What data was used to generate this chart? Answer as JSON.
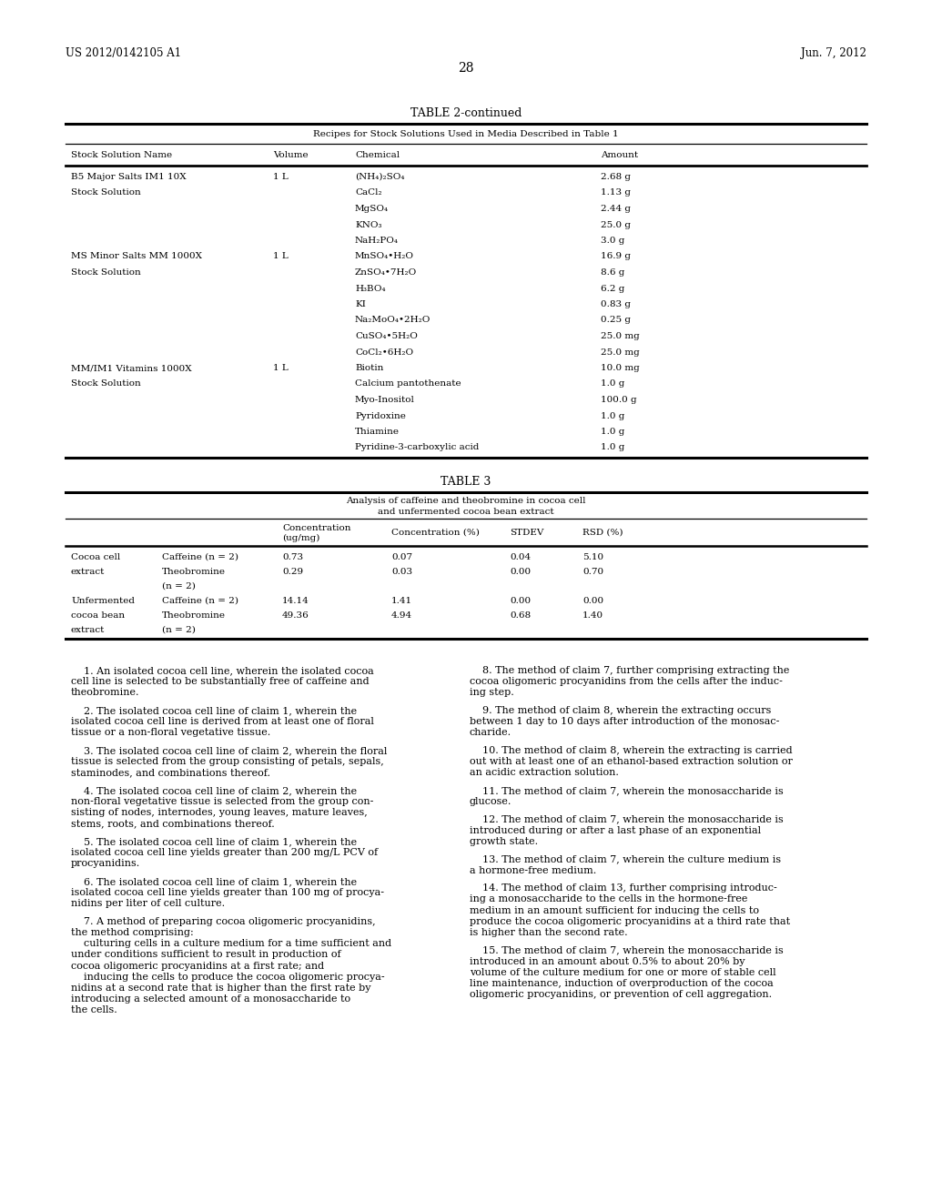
{
  "header_left": "US 2012/0142105 A1",
  "header_right": "Jun. 7, 2012",
  "page_number": "28",
  "table2_title": "TABLE 2-continued",
  "table2_subtitle": "Recipes for Stock Solutions Used in Media Described in Table 1",
  "table2_col_headers": [
    "Stock Solution Name",
    "Volume",
    "Chemical",
    "Amount"
  ],
  "table2_rows": [
    [
      "B5 Major Salts IM1 10X",
      "1 L",
      "(NH₄)₂SO₄",
      "2.68 g"
    ],
    [
      "Stock Solution",
      "",
      "CaCl₂",
      "1.13 g"
    ],
    [
      "",
      "",
      "MgSO₄",
      "2.44 g"
    ],
    [
      "",
      "",
      "KNO₃",
      "25.0 g"
    ],
    [
      "",
      "",
      "NaH₂PO₄",
      "3.0 g"
    ],
    [
      "MS Minor Salts MM 1000X",
      "1 L",
      "MnSO₄•H₂O",
      "16.9 g"
    ],
    [
      "Stock Solution",
      "",
      "ZnSO₄•7H₂O",
      "8.6 g"
    ],
    [
      "",
      "",
      "H₃BO₄",
      "6.2 g"
    ],
    [
      "",
      "",
      "KI",
      "0.83 g"
    ],
    [
      "",
      "",
      "Na₂MoO₄•2H₂O",
      "0.25 g"
    ],
    [
      "",
      "",
      "CuSO₄•5H₂O",
      "25.0 mg"
    ],
    [
      "",
      "",
      "CoCl₂•6H₂O",
      "25.0 mg"
    ],
    [
      "MM/IM1 Vitamins 1000X",
      "1 L",
      "Biotin",
      "10.0 mg"
    ],
    [
      "Stock Solution",
      "",
      "Calcium pantothenate",
      "1.0 g"
    ],
    [
      "",
      "",
      "Myo-Inositol",
      "100.0 g"
    ],
    [
      "",
      "",
      "Pyridoxine",
      "1.0 g"
    ],
    [
      "",
      "",
      "Thiamine",
      "1.0 g"
    ],
    [
      "",
      "",
      "Pyridine-3-carboxylic acid",
      "1.0 g"
    ]
  ],
  "table3_title": "TABLE 3",
  "table3_subtitle1": "Analysis of caffeine and theobromine in cocoa cell",
  "table3_subtitle2": "and unfermented cocoa bean extract",
  "table3_rows": [
    [
      "Cocoa cell",
      "Caffeine (n = 2)",
      "0.73",
      "0.07",
      "0.04",
      "5.10"
    ],
    [
      "extract",
      "Theobromine",
      "0.29",
      "0.03",
      "0.00",
      "0.70"
    ],
    [
      "",
      "(n = 2)",
      "",
      "",
      "",
      ""
    ],
    [
      "Unfermented",
      "Caffeine (n = 2)",
      "14.14",
      "1.41",
      "0.00",
      "0.00"
    ],
    [
      "cocoa bean",
      "Theobromine",
      "49.36",
      "4.94",
      "0.68",
      "1.40"
    ],
    [
      "extract",
      "(n = 2)",
      "",
      "",
      "",
      ""
    ]
  ],
  "background_color": "#ffffff",
  "text_color": "#000000"
}
